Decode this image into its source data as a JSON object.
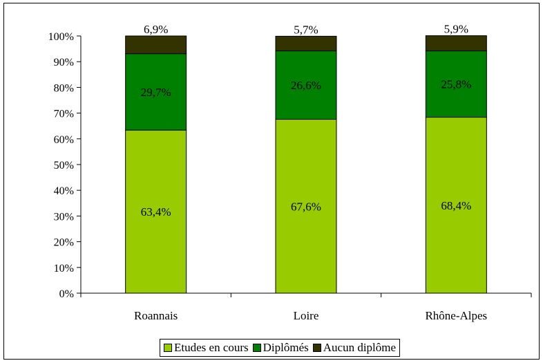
{
  "chart_data": {
    "type": "bar",
    "stacked": true,
    "categories": [
      "Roannais",
      "Loire",
      "Rhône-Alpes"
    ],
    "series": [
      {
        "name": "Etudes en cours",
        "color": "#99cc00",
        "values": [
          63.4,
          67.6,
          68.4
        ],
        "labels": [
          "63,4%",
          "67,6%",
          "68,4%"
        ]
      },
      {
        "name": "Diplômés",
        "color": "#008000",
        "values": [
          29.7,
          26.6,
          25.8
        ],
        "labels": [
          "29,7%",
          "26,6%",
          "25,8%"
        ]
      },
      {
        "name": "Aucun diplôme",
        "color": "#333300",
        "values": [
          6.9,
          5.7,
          5.9
        ],
        "labels": [
          "6,9%",
          "5,7%",
          "5,9%"
        ]
      }
    ],
    "yticks": [
      "0%",
      "10%",
      "20%",
      "30%",
      "40%",
      "50%",
      "60%",
      "70%",
      "80%",
      "90%",
      "100%"
    ],
    "ylim": [
      0,
      100
    ],
    "grid": false,
    "legend_position": "bottom"
  }
}
